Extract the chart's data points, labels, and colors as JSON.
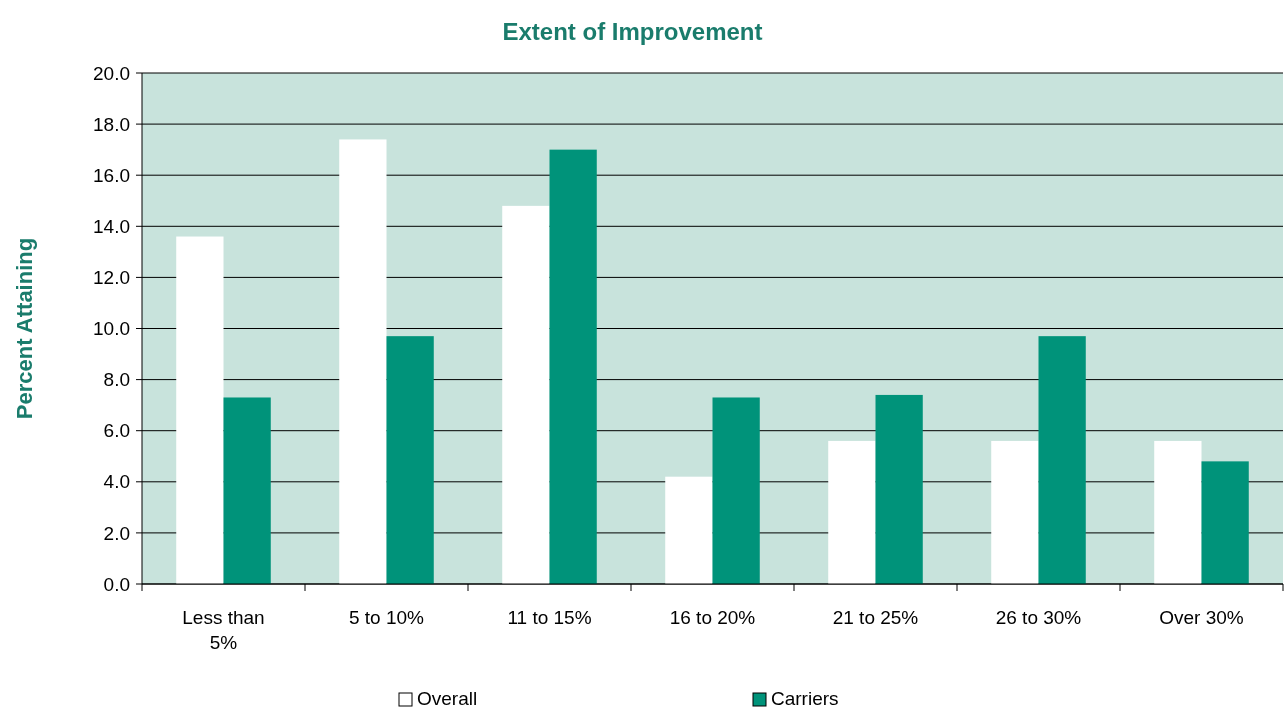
{
  "chart_data": {
    "type": "bar",
    "title": "Extent of Improvement",
    "ylabel": "Percent Attaining",
    "categories": [
      "Less than 5%",
      "5 to 10%",
      "11 to 15%",
      "16 to 20%",
      "21 to 25%",
      "26 to 30%",
      "Over 30%"
    ],
    "series": [
      {
        "name": "Overall",
        "color": "#ffffff",
        "values": [
          13.6,
          17.4,
          14.8,
          4.2,
          5.6,
          5.6,
          5.6
        ]
      },
      {
        "name": "Carriers",
        "color": "#00937a",
        "values": [
          7.3,
          9.7,
          17.0,
          7.3,
          7.4,
          9.7,
          4.8
        ]
      }
    ],
    "ylim": [
      0,
      20
    ],
    "yticks": [
      {
        "value": 0,
        "label": "0.0"
      },
      {
        "value": 2,
        "label": "2.0"
      },
      {
        "value": 4,
        "label": "4.0"
      },
      {
        "value": 6,
        "label": "6.0"
      },
      {
        "value": 8,
        "label": "8.0"
      },
      {
        "value": 10,
        "label": "10.0"
      },
      {
        "value": 12,
        "label": "12.0"
      },
      {
        "value": 14,
        "label": "14.0"
      },
      {
        "value": 16,
        "label": "16.0"
      },
      {
        "value": 18,
        "label": "18.0"
      },
      {
        "value": 20,
        "label": "20.0"
      }
    ],
    "grid": "y",
    "legend": "bottom"
  }
}
